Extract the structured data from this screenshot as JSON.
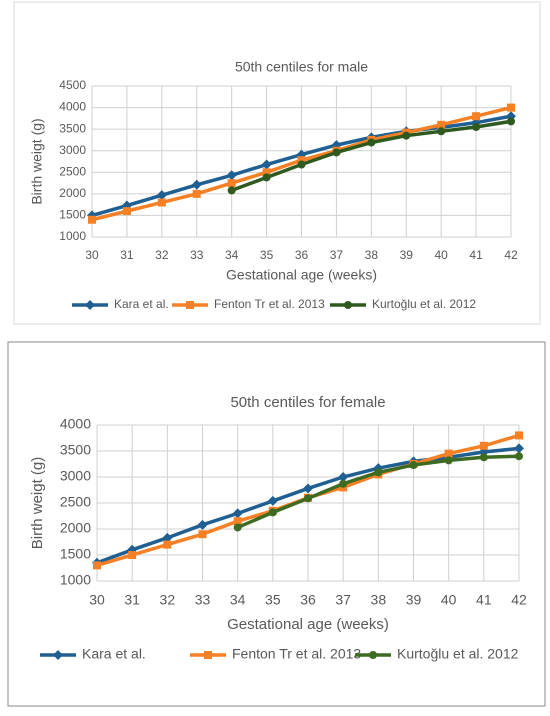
{
  "chart_data": [
    {
      "type": "line",
      "title": "50th centiles for male",
      "x_label": "Gestational age (weeks)",
      "y_label": "Birth weigt (g)",
      "x": [
        30,
        31,
        32,
        33,
        34,
        35,
        36,
        37,
        38,
        39,
        40,
        41,
        42
      ],
      "xlim": [
        30,
        42
      ],
      "xticks": [
        30,
        31,
        32,
        33,
        34,
        35,
        36,
        37,
        38,
        39,
        40,
        41,
        42
      ],
      "ylim": [
        1000,
        4500
      ],
      "yticks": [
        1000,
        1500,
        2000,
        2500,
        3000,
        3500,
        4000,
        4500
      ],
      "grid": true,
      "legend": "bottom",
      "series": [
        {
          "name": "Kara et al.",
          "color": "#1f5f91",
          "marker": "diamond",
          "values": [
            1500,
            1730,
            1970,
            2210,
            2430,
            2680,
            2910,
            3130,
            3310,
            3450,
            3540,
            3650,
            3800
          ]
        },
        {
          "name": "Fenton Tr et al. 2013",
          "color": "#f58025",
          "marker": "square",
          "values": [
            1400,
            1600,
            1800,
            2000,
            2250,
            2500,
            2780,
            3000,
            3250,
            3420,
            3600,
            3800,
            4000
          ]
        },
        {
          "name": "Kurtoğlu et al. 2012",
          "color": "#2f5a1f",
          "marker": "circle",
          "values": [
            null,
            null,
            null,
            null,
            2080,
            2380,
            2680,
            2960,
            3190,
            3350,
            3450,
            3550,
            3680
          ]
        }
      ]
    },
    {
      "type": "line",
      "title": "50th centiles for female",
      "x_label": "Gestational age (weeks)",
      "y_label": "Birth weigt (g)",
      "x": [
        30,
        31,
        32,
        33,
        34,
        35,
        36,
        37,
        38,
        39,
        40,
        41,
        42
      ],
      "xlim": [
        30,
        42
      ],
      "xticks": [
        30,
        31,
        32,
        33,
        34,
        35,
        36,
        37,
        38,
        39,
        40,
        41,
        42
      ],
      "ylim": [
        1000,
        4000
      ],
      "yticks": [
        1000,
        1500,
        2000,
        2500,
        3000,
        3500,
        4000
      ],
      "grid": true,
      "legend": "bottom",
      "series": [
        {
          "name": "Kara et al.",
          "color": "#1f5f91",
          "marker": "diamond",
          "values": [
            1350,
            1600,
            1830,
            2080,
            2300,
            2540,
            2780,
            3000,
            3170,
            3300,
            3380,
            3480,
            3550
          ]
        },
        {
          "name": "Fenton Tr et al. 2013",
          "color": "#f58025",
          "marker": "square",
          "values": [
            1300,
            1500,
            1700,
            1900,
            2150,
            2350,
            2600,
            2800,
            3050,
            3250,
            3450,
            3600,
            3800
          ]
        },
        {
          "name": "Kurtoğlu et al. 2012",
          "color": "#3d6b22",
          "marker": "circle",
          "values": [
            null,
            null,
            null,
            null,
            2030,
            2320,
            2590,
            2870,
            3090,
            3230,
            3320,
            3380,
            3400
          ]
        }
      ]
    }
  ]
}
